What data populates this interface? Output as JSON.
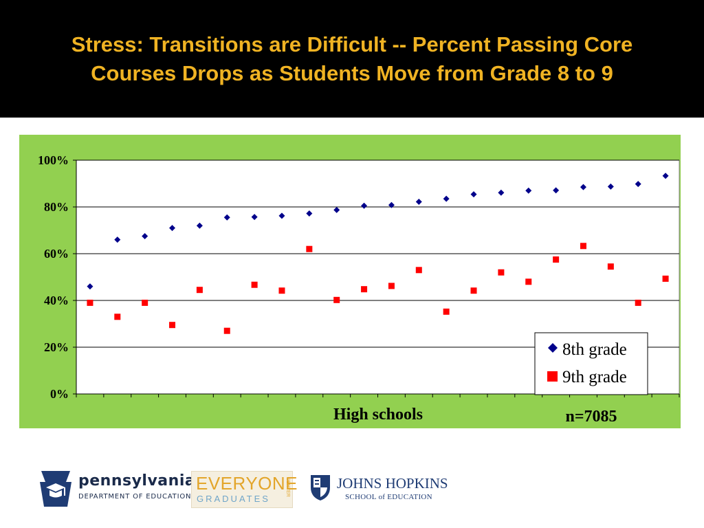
{
  "slide": {
    "title_line1": "Stress: Transitions are Difficult -- Percent Passing Core",
    "title_line2": "Courses Drops as Students Move from Grade 8 to 9",
    "colors": {
      "title_background": "#000000",
      "title_text": "#f0b323",
      "chart_background": "#92d050",
      "plot_background": "#ffffff"
    }
  },
  "chart_data": {
    "type": "scatter",
    "xlabel": "High schools",
    "annotation": "n=7085",
    "ylim": [
      0,
      1
    ],
    "yticks": [
      "0%",
      "20%",
      "40%",
      "60%",
      "80%",
      "100%"
    ],
    "ytick_values": [
      0,
      0.2,
      0.4,
      0.6,
      0.8,
      1.0
    ],
    "x_count": 22,
    "grid": "horizontal",
    "legend_position": "bottom-right",
    "series": [
      {
        "name": "8th grade",
        "marker": "diamond",
        "color": "#00008b",
        "values": [
          0.46,
          0.66,
          0.675,
          0.71,
          0.72,
          0.755,
          0.757,
          0.762,
          0.772,
          0.787,
          0.805,
          0.808,
          0.822,
          0.835,
          0.854,
          0.861,
          0.87,
          0.871,
          0.885,
          0.887,
          0.898,
          0.933
        ]
      },
      {
        "name": "9th grade",
        "marker": "square",
        "color": "#ff0000",
        "values": [
          0.39,
          0.33,
          0.39,
          0.295,
          0.445,
          0.27,
          0.467,
          0.442,
          0.62,
          0.402,
          0.448,
          0.462,
          0.53,
          0.352,
          0.442,
          0.52,
          0.48,
          0.575,
          0.633,
          0.545,
          0.39,
          0.493
        ]
      }
    ]
  },
  "logos": {
    "pennsylvania": {
      "name": "pennsylvania",
      "subtitle": "DEPARTMENT OF EDUCATION"
    },
    "everyone_graduates": {
      "top": "EVERYONE",
      "bottom": "GRADUATES",
      "side": "CENTER"
    },
    "johns_hopkins": {
      "name": "JOHNS HOPKINS",
      "subtitle": "SCHOOL of EDUCATION"
    }
  }
}
